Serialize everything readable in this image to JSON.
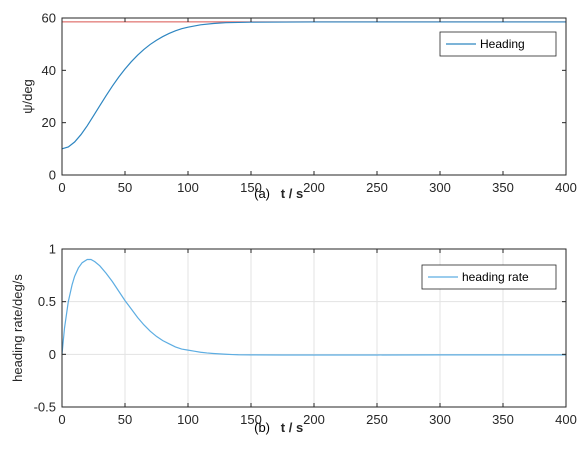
{
  "chart_data": [
    {
      "type": "line",
      "ylabel": "ψ/deg",
      "xlabel": "t / s",
      "caption": "(a)",
      "xlim": [
        0,
        400
      ],
      "ylim": [
        0,
        60
      ],
      "xticks": [
        "0",
        "50",
        "100",
        "150",
        "200",
        "250",
        "300",
        "350",
        "400"
      ],
      "yticks": [
        "0",
        "20",
        "40",
        "60"
      ],
      "grid": false,
      "legend_position": "top-right",
      "reference_line": {
        "y": 58.5,
        "color": "#d9534f"
      },
      "series": [
        {
          "name": "Heading",
          "color": "#2e86c1",
          "x": [
            0,
            5,
            10,
            15,
            20,
            25,
            30,
            35,
            40,
            45,
            50,
            55,
            60,
            65,
            70,
            75,
            80,
            85,
            90,
            95,
            100,
            110,
            120,
            130,
            140,
            150,
            200,
            250,
            300,
            350,
            400
          ],
          "y": [
            10,
            10.7,
            12.6,
            15.4,
            18.8,
            22.6,
            26.5,
            30.3,
            34.0,
            37.4,
            40.5,
            43.3,
            45.8,
            48.0,
            49.9,
            51.5,
            52.9,
            54.1,
            55.1,
            55.9,
            56.5,
            57.4,
            57.9,
            58.2,
            58.3,
            58.4,
            58.5,
            58.5,
            58.5,
            58.5,
            58.5
          ]
        }
      ]
    },
    {
      "type": "line",
      "ylabel": "heading rate/deg/s",
      "xlabel": "t / s",
      "caption": "(b)",
      "xlim": [
        0,
        400
      ],
      "ylim": [
        -0.5,
        1
      ],
      "xticks": [
        "0",
        "50",
        "100",
        "150",
        "200",
        "250",
        "300",
        "350",
        "400"
      ],
      "yticks": [
        "-0.5",
        "0",
        "0.5",
        "1"
      ],
      "grid": true,
      "legend_position": "top-right",
      "series": [
        {
          "name": "heading rate",
          "color": "#5dade2",
          "x": [
            0,
            2,
            5,
            8,
            10,
            13,
            16,
            20,
            23,
            26,
            30,
            35,
            40,
            45,
            50,
            55,
            60,
            65,
            70,
            75,
            80,
            85,
            90,
            95,
            100,
            105,
            110,
            115,
            120,
            125,
            130,
            135,
            140,
            150,
            175,
            200,
            250,
            300,
            350,
            400
          ],
          "y": [
            0,
            0.25,
            0.5,
            0.66,
            0.74,
            0.82,
            0.87,
            0.9,
            0.9,
            0.88,
            0.84,
            0.77,
            0.69,
            0.6,
            0.51,
            0.43,
            0.35,
            0.28,
            0.22,
            0.17,
            0.13,
            0.1,
            0.07,
            0.05,
            0.04,
            0.03,
            0.02,
            0.013,
            0.008,
            0.004,
            0.001,
            -0.002,
            -0.004,
            -0.005,
            -0.006,
            -0.006,
            -0.006,
            -0.005,
            -0.005,
            -0.005
          ]
        }
      ]
    }
  ]
}
